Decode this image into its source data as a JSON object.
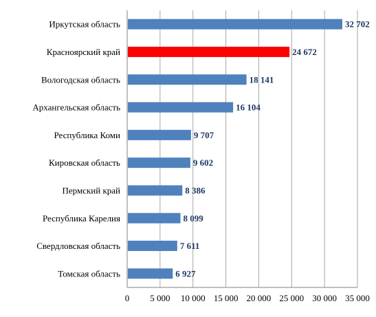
{
  "chart_data": {
    "type": "bar",
    "orientation": "horizontal",
    "categories": [
      "Иркутская область",
      "Красноярский край",
      "Вологодская область",
      "Архангельская область",
      "Республика Коми",
      "Кировская область",
      "Пермский край",
      "Республика Карелия",
      "Свердловская область",
      "Томская область"
    ],
    "values": [
      32702,
      24672,
      18141,
      16104,
      9707,
      9602,
      8386,
      8099,
      7611,
      6927
    ],
    "value_labels": [
      "32 702",
      "24 672",
      "18 141",
      "16 104",
      "9 707",
      "9 602",
      "8 386",
      "8 099",
      "7 611",
      "6 927"
    ],
    "xlim": [
      0,
      35000
    ],
    "x_ticks": [
      0,
      5000,
      10000,
      15000,
      20000,
      25000,
      30000,
      35000
    ],
    "x_tick_labels": [
      "0",
      "5 000",
      "10 000",
      "15 000",
      "20 000",
      "25 000",
      "30 000",
      "35 000"
    ],
    "grid": "vertical",
    "legend": "none",
    "title": "",
    "xlabel": "",
    "ylabel": "",
    "colors": {
      "bar": "#4F81BD",
      "highlight": "#FF0000",
      "value_label": "#1F3864"
    },
    "highlight_index": 1
  }
}
